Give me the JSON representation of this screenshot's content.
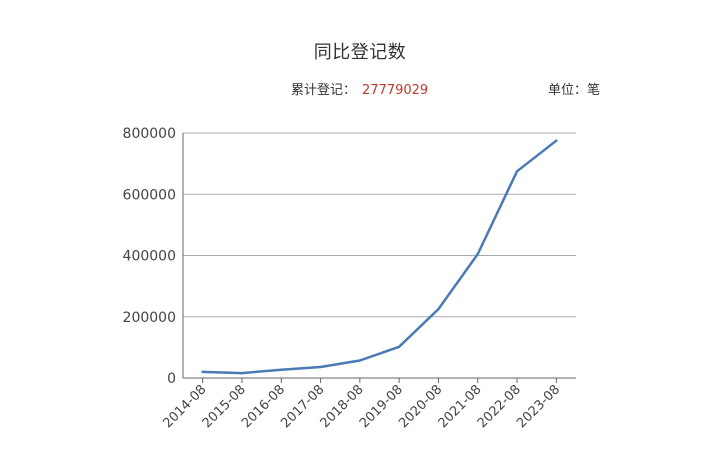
{
  "header": {
    "title": "同比登记数",
    "total_label": "累计登记：",
    "total_value": "27779029",
    "unit_label": "单位：笔"
  },
  "colors": {
    "line": "#4a7ab5",
    "grid": "#aaaaaa",
    "axis": "#666666",
    "total_value": "#c0392b"
  },
  "chart_data": {
    "type": "line",
    "title": "同比登记数",
    "xlabel": "",
    "ylabel": "",
    "categories": [
      "2014-08",
      "2015-08",
      "2016-08",
      "2017-08",
      "2018-08",
      "2019-08",
      "2020-08",
      "2021-08",
      "2022-08",
      "2023-08"
    ],
    "series": [
      {
        "values": [
          20000,
          16000,
          27000,
          36000,
          57000,
          102000,
          225000,
          405000,
          675000,
          775000
        ]
      }
    ],
    "ylim": [
      0,
      800000
    ],
    "yticks": [
      "0",
      "200000",
      "400000",
      "600000",
      "800000"
    ],
    "grid": "horizontal",
    "legend": "none"
  }
}
